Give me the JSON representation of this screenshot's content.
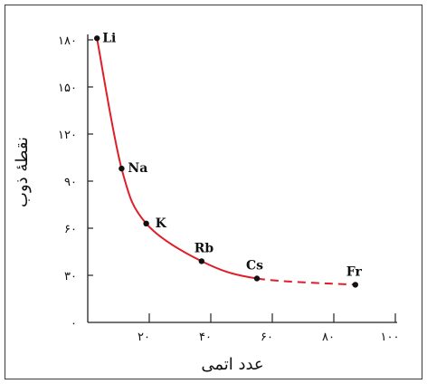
{
  "chart_data": {
    "type": "line",
    "xlabel": "عدد اتمی",
    "ylabel": "نقطهٔ ذوب",
    "xlim": [
      0,
      100
    ],
    "ylim": [
      0,
      180
    ],
    "x_ticks": [
      20,
      40,
      60,
      80,
      100
    ],
    "x_tick_labels": [
      "۲۰",
      "۴۰",
      "۶۰",
      "۸۰",
      "۱۰۰"
    ],
    "y_ticks": [
      0,
      30,
      60,
      90,
      120,
      150,
      180
    ],
    "y_tick_labels": [
      "۰",
      "۳۰",
      "۶۰",
      "۹۰",
      "۱۲۰",
      "۱۵۰",
      "۱۸۰"
    ],
    "series": [
      {
        "points": [
          {
            "label": "Li",
            "x": 3,
            "y": 181
          },
          {
            "label": "Na",
            "x": 11,
            "y": 98
          },
          {
            "label": "K",
            "x": 19,
            "y": 63
          },
          {
            "label": "Rb",
            "x": 37,
            "y": 39
          },
          {
            "label": "Cs",
            "x": 55,
            "y": 28
          },
          {
            "label": "Fr",
            "x": 87,
            "y": 24
          }
        ],
        "dashed_from": "Cs",
        "color": "#e01e2a"
      }
    ],
    "grid": false,
    "point_color": "#111111"
  }
}
